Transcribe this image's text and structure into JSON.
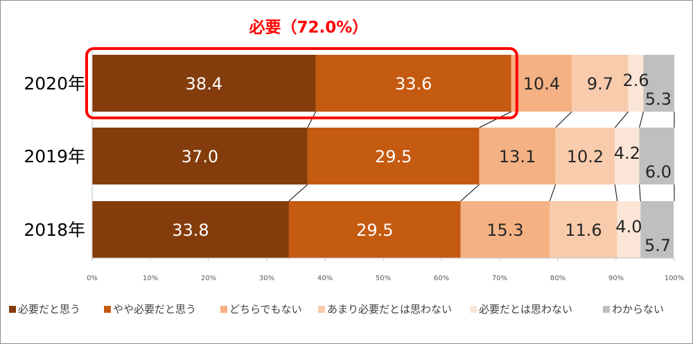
{
  "chart_data": {
    "type": "bar",
    "orientation": "horizontal",
    "stacked": true,
    "categories": [
      "2020年",
      "2019年",
      "2018年"
    ],
    "series": [
      {
        "name": "必要だと思う",
        "color": "#843c0c",
        "values": [
          38.4,
          37.0,
          33.8
        ]
      },
      {
        "name": "やや必要だと思う",
        "color": "#c55a11",
        "values": [
          33.6,
          29.5,
          29.5
        ]
      },
      {
        "name": "どちらでもない",
        "color": "#f4b183",
        "values": [
          10.4,
          13.1,
          15.3
        ]
      },
      {
        "name": "あまり必要だとは思わない",
        "color": "#f8cbad",
        "values": [
          9.7,
          10.2,
          11.6
        ]
      },
      {
        "name": "必要だとは思わない",
        "color": "#fbe5d6",
        "values": [
          2.6,
          4.2,
          4.0
        ]
      },
      {
        "name": "わからない",
        "color": "#bfbfbf",
        "values": [
          5.3,
          6.0,
          5.7
        ]
      }
    ],
    "label_colors": [
      "#ffffff",
      "#ffffff",
      "#262626",
      "#262626",
      "#262626",
      "#262626"
    ],
    "xlim": [
      0,
      100
    ],
    "xticks": [
      "0%",
      "10%",
      "20%",
      "30%",
      "40%",
      "50%",
      "60%",
      "70%",
      "80%",
      "90%",
      "100%"
    ],
    "grid": false,
    "legend": "bottom",
    "annotation": {
      "text": "必要（72.0%）",
      "color": "#ff0000",
      "category": "2020年",
      "series_covered": [
        "必要だと思う",
        "やや必要だと思う"
      ]
    }
  }
}
